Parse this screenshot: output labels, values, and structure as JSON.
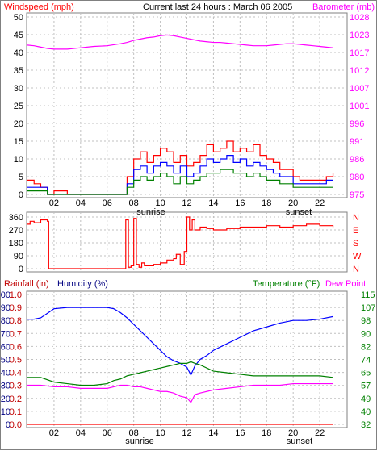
{
  "header": {
    "left_label": "Windspeed (mph)",
    "title": "Current last 24 hours : March 06 2005",
    "right_label": "Barometer (mb)"
  },
  "colors": {
    "red": "#ff0000",
    "blue": "#0000ff",
    "green": "#008000",
    "magenta": "#ff00ff",
    "darkred": "#c00000",
    "navy": "#000080",
    "grid": "#c0c0c0"
  },
  "x_axis": {
    "ticks": [
      "02",
      "04",
      "06",
      "08",
      "10",
      "12",
      "14",
      "16",
      "18",
      "20",
      "22"
    ],
    "sunrise": "sunrise",
    "sunset": "sunset"
  },
  "panel3": {
    "rain_label": "Rainfall (in)",
    "hum_label": "Humidity (%)",
    "temp_label": "Temperature (°F)",
    "dew_label": "Dew Point"
  },
  "chart_data": [
    {
      "type": "line",
      "title": "Current last 24 hours : March 06 2005",
      "ylabel": "Windspeed (mph)",
      "y2label": "Barometer (mb)",
      "ylim": [
        0,
        50
      ],
      "y_ticks": [
        "0",
        "5",
        "10",
        "15",
        "20",
        "25",
        "30",
        "35",
        "40",
        "45",
        "50"
      ],
      "y2lim": [
        975,
        1028
      ],
      "y2_ticks": [
        "975",
        "980",
        "986",
        "991",
        "996",
        "1001",
        "1007",
        "1012",
        "1017",
        "1023",
        "1028"
      ],
      "x": [
        0,
        0.5,
        1,
        1.5,
        2,
        3,
        4,
        5,
        6,
        7,
        7.5,
        8,
        8.5,
        9,
        9.5,
        10,
        10.5,
        11,
        11.5,
        12,
        12.5,
        13,
        13.5,
        14,
        14.5,
        15,
        15.5,
        16,
        16.5,
        17,
        17.5,
        18,
        18.5,
        19,
        19.5,
        20,
        20.5,
        21,
        21.5,
        22,
        22.5,
        23
      ],
      "series": [
        {
          "name": "gust",
          "axis": "left",
          "values": [
            4,
            3,
            2,
            0,
            1,
            0,
            0,
            0,
            0,
            0,
            5,
            10,
            12,
            9,
            11,
            13,
            12,
            9,
            11,
            8,
            9,
            11,
            14,
            12,
            13,
            15,
            12,
            13,
            12,
            14,
            11,
            10,
            9,
            7,
            7,
            5,
            4,
            4,
            4,
            4,
            5,
            6
          ]
        },
        {
          "name": "average",
          "axis": "left",
          "values": [
            2,
            2,
            2,
            0,
            0,
            0,
            0,
            0,
            0,
            0,
            3,
            7,
            8,
            6,
            8,
            9,
            8,
            6,
            8,
            5,
            6,
            8,
            10,
            9,
            10,
            11,
            9,
            10,
            8,
            9,
            8,
            7,
            6,
            5,
            5,
            3,
            3,
            3,
            3,
            3,
            4,
            4
          ]
        },
        {
          "name": "lull",
          "axis": "left",
          "values": [
            1,
            1,
            1,
            0,
            0,
            0,
            0,
            0,
            0,
            0,
            2,
            4,
            5,
            4,
            5,
            6,
            5,
            3,
            5,
            3,
            4,
            5,
            6,
            6,
            7,
            7,
            6,
            6,
            5,
            6,
            5,
            4,
            4,
            3,
            3,
            2,
            2,
            2,
            2,
            2,
            2,
            2
          ]
        },
        {
          "name": "barometer",
          "axis": "right",
          "values": [
            1019.6,
            1019.4,
            1019.0,
            1018.6,
            1018.4,
            1018.4,
            1018.8,
            1019.2,
            1019.4,
            1020.0,
            1020.4,
            1021.0,
            1021.4,
            1021.8,
            1022.0,
            1022.4,
            1022.6,
            1022.4,
            1022.0,
            1021.6,
            1021.2,
            1020.8,
            1020.6,
            1020.4,
            1020.4,
            1020.2,
            1020.0,
            1019.8,
            1019.6,
            1019.4,
            1019.4,
            1019.4,
            1019.6,
            1019.8,
            1020.0,
            1020.0,
            1019.8,
            1019.6,
            1019.4,
            1019.2,
            1019.0,
            1018.8
          ]
        }
      ]
    },
    {
      "type": "line",
      "ylim": [
        0,
        360
      ],
      "y_ticks": [
        "0",
        "90",
        "180",
        "270",
        "360"
      ],
      "y2_ticks": [
        "N",
        "W",
        "S",
        "E",
        "N"
      ],
      "x": [
        0,
        0.2,
        0.5,
        1,
        1.5,
        1.6,
        2,
        4,
        6,
        7,
        7.2,
        7.4,
        7.6,
        7.8,
        8,
        8.2,
        8.4,
        8.6,
        8.8,
        9,
        9.5,
        10,
        10.5,
        11,
        11.2,
        11.5,
        11.8,
        12,
        12.2,
        12.4,
        12.6,
        13,
        13.5,
        14,
        15,
        16,
        17,
        18,
        19,
        20,
        21,
        22,
        23
      ],
      "series": [
        {
          "name": "wind direction",
          "values": [
            310,
            330,
            320,
            340,
            330,
            0,
            0,
            0,
            0,
            0,
            0,
            340,
            10,
            20,
            350,
            30,
            10,
            40,
            20,
            20,
            30,
            40,
            60,
            70,
            100,
            30,
            120,
            360,
            270,
            340,
            270,
            290,
            280,
            270,
            280,
            290,
            290,
            300,
            290,
            300,
            310,
            300,
            290
          ]
        }
      ]
    },
    {
      "type": "line",
      "ylabel": "Rainfall (in)",
      "y2label": "Temperature (°F)",
      "ylim": [
        0,
        1
      ],
      "y_ticks": [
        "0.0",
        "0.1",
        "0.2",
        "0.3",
        "0.4",
        "0.5",
        "0.6",
        "0.7",
        "0.8",
        "0.9",
        "1.0"
      ],
      "y_ticks_humidity": [
        "0",
        "10",
        "20",
        "30",
        "40",
        "50",
        "60",
        "70",
        "80",
        "90",
        "100"
      ],
      "y2lim": [
        32,
        115
      ],
      "y2_ticks": [
        "32",
        "40",
        "49",
        "57",
        "65",
        "74",
        "82",
        "90",
        "98",
        "107",
        "115"
      ],
      "x": [
        0,
        0.5,
        1,
        2,
        3,
        4,
        5,
        6,
        6.5,
        7,
        7.5,
        8,
        8.5,
        9,
        9.5,
        10,
        10.5,
        11,
        11.5,
        12,
        12.3,
        12.6,
        13,
        13.5,
        14,
        15,
        16,
        17,
        18,
        19,
        20,
        21,
        22,
        23
      ],
      "series": [
        {
          "name": "Humidity (%)",
          "axis": "humidity",
          "values": [
            81,
            81,
            82,
            89,
            90,
            90,
            90,
            90,
            89,
            86,
            82,
            77,
            72,
            67,
            62,
            57,
            52,
            49,
            47,
            44,
            38,
            45,
            50,
            53,
            57,
            62,
            67,
            72,
            75,
            78,
            80,
            80,
            81,
            83
          ]
        },
        {
          "name": "Temperature (°F)",
          "axis": "temp",
          "values": [
            62,
            62,
            62,
            59,
            58,
            57,
            57,
            58,
            60,
            61,
            63,
            64,
            65,
            66,
            67,
            68,
            69,
            70,
            71,
            71,
            72,
            71,
            70,
            68,
            66,
            65,
            64,
            63,
            63,
            63,
            63,
            63,
            63,
            62
          ]
        },
        {
          "name": "Dew Point",
          "axis": "temp",
          "values": [
            57,
            57,
            57,
            56,
            56,
            55,
            55,
            55,
            56,
            57,
            57,
            56,
            56,
            55,
            54,
            53,
            53,
            52,
            50,
            49,
            46,
            51,
            52,
            53,
            54,
            55,
            56,
            57,
            57,
            57,
            58,
            58,
            58,
            58
          ]
        },
        {
          "name": "Rainfall (in)",
          "axis": "rain",
          "values": [
            0,
            0,
            0,
            0,
            0,
            0,
            0,
            0,
            0,
            0,
            0,
            0,
            0,
            0,
            0,
            0,
            0,
            0,
            0,
            0,
            0,
            0,
            0,
            0,
            0,
            0,
            0,
            0,
            0,
            0,
            0,
            0,
            0,
            0
          ]
        }
      ]
    }
  ]
}
